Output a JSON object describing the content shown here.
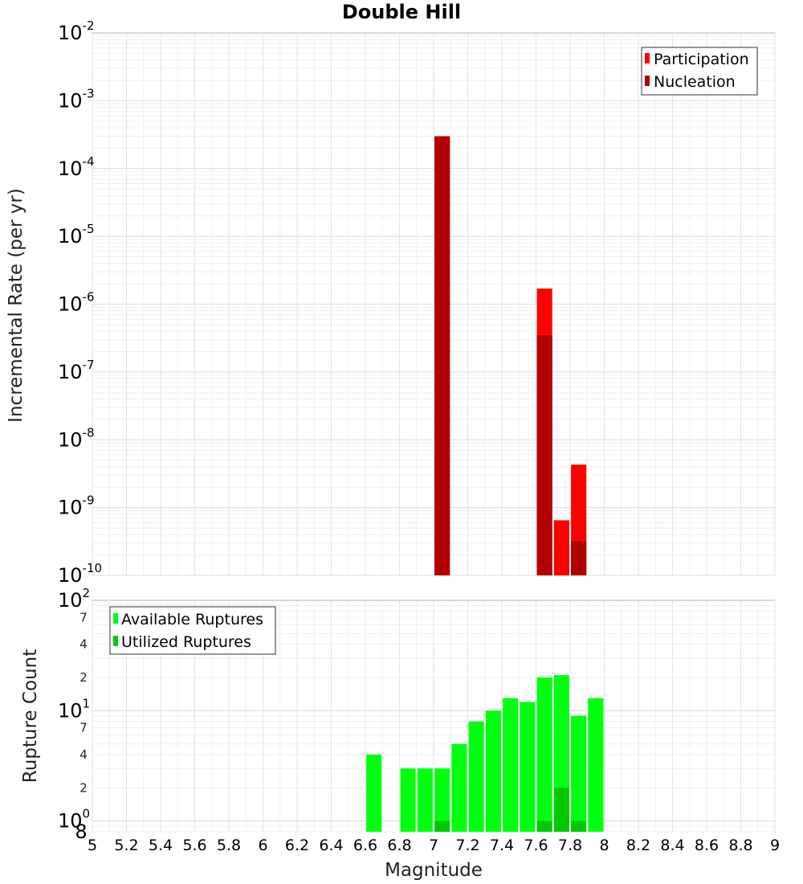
{
  "chart_data": [
    {
      "type": "bar",
      "title": "Double Hill",
      "xlabel": "",
      "ylabel": "Incremental Rate (per yr)",
      "yscale": "log",
      "ylim": [
        1e-10,
        0.01
      ],
      "xlim": [
        5,
        9
      ],
      "grid": true,
      "legend_position": "top-right",
      "y_tick_labels": [
        {
          "base": "10",
          "exp": "-10"
        },
        {
          "base": "10",
          "exp": "-9"
        },
        {
          "base": "10",
          "exp": "-8"
        },
        {
          "base": "10",
          "exp": "-7"
        },
        {
          "base": "10",
          "exp": "-6"
        },
        {
          "base": "10",
          "exp": "-5"
        },
        {
          "base": "10",
          "exp": "-4"
        },
        {
          "base": "10",
          "exp": "-3"
        },
        {
          "base": "10",
          "exp": "-2"
        }
      ],
      "series": [
        {
          "name": "Participation",
          "color": "#ff0000",
          "x": [
            7.05,
            7.65,
            7.75,
            7.85
          ],
          "values": [
            0.0003,
            1.7e-06,
            6.5e-10,
            4.3e-09
          ]
        },
        {
          "name": "Nucleation",
          "color": "#b20000",
          "x": [
            7.05,
            7.65,
            7.85
          ],
          "values": [
            0.0003,
            3.5e-07,
            3.2e-10
          ]
        }
      ]
    },
    {
      "type": "bar",
      "title": "",
      "xlabel": "Magnitude",
      "ylabel": "Rupture Count",
      "yscale": "log",
      "ylim": [
        0.8,
        100
      ],
      "xlim": [
        5,
        9
      ],
      "grid": true,
      "legend_position": "top-left",
      "x_tick_labels": [
        "5",
        "5.2",
        "5.4",
        "5.6",
        "5.8",
        "6",
        "6.2",
        "6.4",
        "6.6",
        "6.8",
        "7",
        "7.2",
        "7.4",
        "7.6",
        "7.8",
        "8",
        "8.2",
        "8.4",
        "8.6",
        "8.8",
        "9"
      ],
      "y_tick_labels": [
        {
          "base": "10",
          "exp": "0"
        },
        {
          "base": "10",
          "exp": "1"
        },
        {
          "base": "10",
          "exp": "2"
        }
      ],
      "y_minor_labels": [
        "8",
        "2",
        "4",
        "7",
        "2",
        "4",
        "7"
      ],
      "series": [
        {
          "name": "Available Ruptures",
          "color": "#00ff10",
          "x": [
            6.65,
            6.85,
            6.95,
            7.05,
            7.15,
            7.25,
            7.35,
            7.45,
            7.55,
            7.65,
            7.75,
            7.85,
            7.95
          ],
          "values": [
            4,
            3,
            3,
            3,
            5,
            8,
            10,
            13,
            12,
            20,
            21,
            9,
            13
          ]
        },
        {
          "name": "Utilized Ruptures",
          "color": "#00c800",
          "x": [
            7.05,
            7.65,
            7.75,
            7.85
          ],
          "values": [
            1,
            1,
            2,
            1
          ]
        }
      ]
    }
  ]
}
